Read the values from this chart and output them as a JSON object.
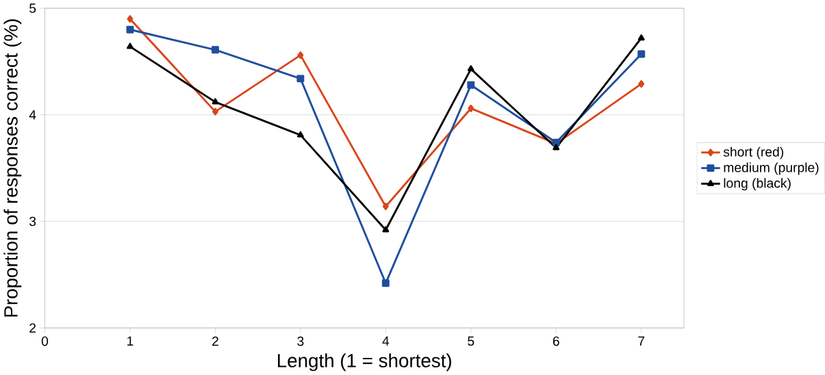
{
  "chart_data": {
    "type": "line",
    "xlabel": "Length (1 = shortest)",
    "ylabel": "Proportion of responses correct (%)",
    "x": [
      1,
      2,
      3,
      4,
      5,
      6,
      7
    ],
    "series": [
      {
        "name": "short (red)",
        "color": "#d9461b",
        "marker": "diamond",
        "values": [
          4.9,
          4.03,
          4.56,
          3.14,
          4.06,
          3.73,
          4.29
        ]
      },
      {
        "name": "medium (purple)",
        "color": "#1f4e9e",
        "marker": "square",
        "values": [
          4.8,
          4.61,
          4.34,
          2.42,
          4.28,
          3.74,
          4.57
        ]
      },
      {
        "name": "long (black)",
        "color": "#000000",
        "marker": "triangle",
        "values": [
          4.64,
          4.12,
          3.81,
          2.92,
          4.43,
          3.69,
          4.72
        ]
      }
    ],
    "xlim": [
      0,
      7.5
    ],
    "ylim": [
      2,
      5
    ],
    "xticks": [
      0,
      1,
      2,
      3,
      4,
      5,
      6,
      7
    ],
    "yticks": [
      2,
      3,
      4,
      5
    ],
    "grid": "y",
    "legend": "right",
    "line_style": "solid"
  }
}
